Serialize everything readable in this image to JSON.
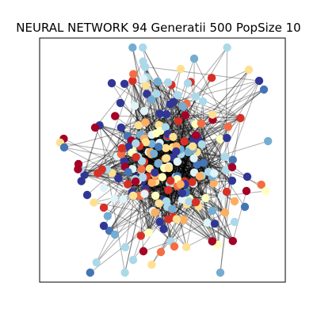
{
  "figure": {
    "title": "NEURAL NETWORK 94 Generatii 500 PopSize 10"
  },
  "palette": {
    "dark_red": "#a50026",
    "red": "#d73027",
    "orange_red": "#f46d43",
    "orange": "#fdae61",
    "pale_yellow": "#fee090",
    "light_yellow": "#ffffbf",
    "pale_blue": "#e0f3f8",
    "light_blue": "#abd9e9",
    "mid_blue": "#74add1",
    "blue": "#4575b4",
    "dark_blue": "#313695"
  }
}
